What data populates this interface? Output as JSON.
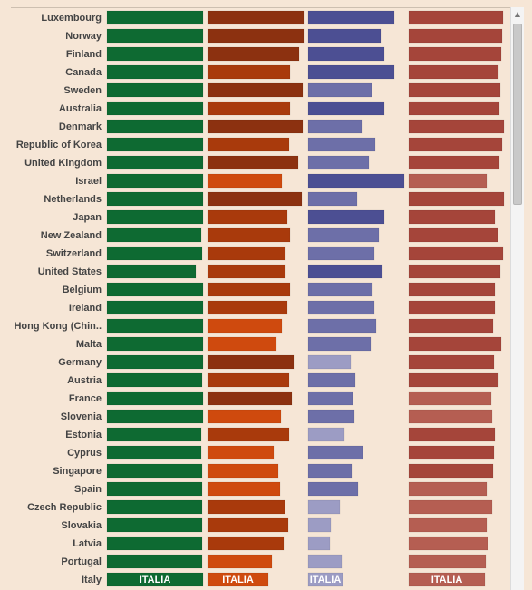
{
  "chart_data": {
    "type": "bar",
    "layout": "small-multiples-horizontal",
    "highlight_label": "ITALIA",
    "colors": {
      "panel1": "#0e6a32",
      "panel2_dark": "#8c3110",
      "panel2_mid": "#a93a0c",
      "panel2_light": "#cf4a0e",
      "panel3_dark": "#4c4f93",
      "panel3_mid": "#6d6fa8",
      "panel3_light": "#9c9cc4",
      "panel4_dark": "#a5453a",
      "panel4_light": "#b55e52"
    },
    "categories": [
      "Luxembourg",
      "Norway",
      "Finland",
      "Canada",
      "Sweden",
      "Australia",
      "Denmark",
      "Republic of Korea",
      "United Kingdom",
      "Israel",
      "Netherlands",
      "Japan",
      "New Zealand",
      "Switzerland",
      "United States",
      "Belgium",
      "Ireland",
      "Hong Kong (Chin..",
      "Malta",
      "Germany",
      "Austria",
      "France",
      "Slovenia",
      "Estonia",
      "Cyprus",
      "Singapore",
      "Spain",
      "Czech Republic",
      "Slovakia",
      "Latvia",
      "Portugal",
      "Italy"
    ],
    "series": [
      {
        "values": [
          100,
          100,
          100,
          100,
          100,
          100,
          100,
          100,
          100,
          100,
          100,
          100,
          98,
          99,
          92,
          100,
          100,
          100,
          100,
          100,
          99,
          100,
          100,
          98,
          98,
          99,
          99,
          99,
          99,
          99,
          99,
          100
        ]
      },
      {
        "values": [
          100,
          100,
          95,
          86,
          99,
          86,
          99,
          85,
          94,
          77,
          98,
          83,
          86,
          81,
          81,
          86,
          83,
          77,
          72,
          90,
          85,
          88,
          76,
          85,
          69,
          74,
          75,
          80,
          84,
          79,
          67,
          63
        ]
      },
      {
        "values": [
          90,
          75,
          79,
          90,
          66,
          79,
          56,
          70,
          63,
          100,
          51,
          79,
          74,
          69,
          77,
          67,
          69,
          71,
          65,
          44,
          49,
          46,
          48,
          38,
          57,
          45,
          52,
          33,
          24,
          23,
          35,
          36
        ]
      },
      {
        "values": [
          98,
          97,
          96,
          93,
          95,
          94,
          99,
          97,
          94,
          81,
          99,
          90,
          92,
          98,
          95,
          90,
          90,
          88,
          96,
          89,
          93,
          86,
          87,
          90,
          89,
          88,
          81,
          87,
          81,
          82,
          80,
          79
        ]
      }
    ]
  }
}
